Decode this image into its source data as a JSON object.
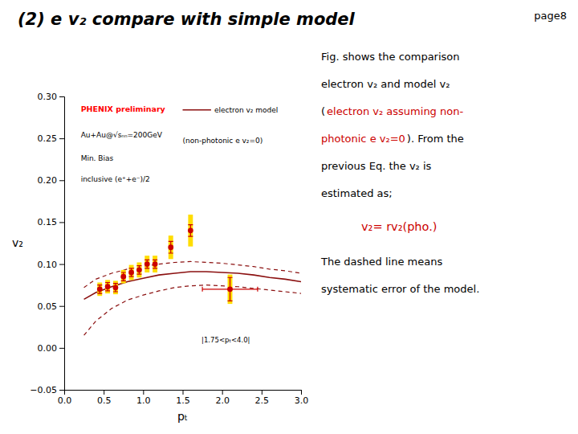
{
  "chart_data": {
    "type": "scatter",
    "title": "(2) e v₂ compare with simple model",
    "page_label": "page8",
    "x_label": "pₜ",
    "y_label": "v₂",
    "xlim": [
      0,
      3
    ],
    "ylim": [
      -0.05,
      0.3
    ],
    "xticks": [
      {
        "value": 0,
        "label": "0.0"
      },
      {
        "value": 0.5,
        "label": "0.5"
      },
      {
        "value": 1,
        "label": "1.0"
      },
      {
        "value": 1.5,
        "label": "1.5"
      },
      {
        "value": 2,
        "label": "2.0"
      },
      {
        "value": 2.5,
        "label": "2.5"
      },
      {
        "value": 3,
        "label": "3.0"
      }
    ],
    "yticks": [
      {
        "value": -0.05,
        "label": "−0.05"
      },
      {
        "value": 0,
        "label": "0.00"
      },
      {
        "value": 0.05,
        "label": "0.05"
      },
      {
        "value": 0.1,
        "label": "0.10"
      },
      {
        "value": 0.15,
        "label": "0.15"
      },
      {
        "value": 0.2,
        "label": "0.20"
      },
      {
        "value": 0.25,
        "label": "0.25"
      },
      {
        "value": 0.3,
        "label": "0.30"
      }
    ],
    "legend": "upper right",
    "series": [
      {
        "name": "electron v₂ model",
        "type": "line",
        "line_style": "solid",
        "color": "#8b1010",
        "x": [
          0.25,
          0.4,
          0.6,
          0.8,
          1.0,
          1.2,
          1.4,
          1.6,
          1.8,
          2.0,
          2.2,
          2.4,
          2.6,
          2.8,
          3.0
        ],
        "values": [
          0.058,
          0.066,
          0.073,
          0.079,
          0.083,
          0.087,
          0.089,
          0.091,
          0.091,
          0.09,
          0.089,
          0.087,
          0.084,
          0.082,
          0.079
        ]
      },
      {
        "type": "line",
        "line_style": "dashed",
        "color": "#8b1010",
        "x": [
          0.25,
          0.4,
          0.6,
          0.8,
          1.0,
          1.2,
          1.4,
          1.6,
          1.8,
          2.0,
          2.2,
          2.4,
          2.6,
          2.8,
          3.0
        ],
        "values": [
          0.072,
          0.082,
          0.089,
          0.094,
          0.097,
          0.1,
          0.102,
          0.103,
          0.102,
          0.101,
          0.099,
          0.097,
          0.094,
          0.092,
          0.089
        ]
      },
      {
        "type": "line",
        "line_style": "dashed",
        "color": "#8b1010",
        "x": [
          0.25,
          0.4,
          0.6,
          0.8,
          1.0,
          1.2,
          1.4,
          1.6,
          1.8,
          2.0,
          2.2,
          2.4,
          2.6,
          2.8,
          3.0
        ],
        "values": [
          0.015,
          0.032,
          0.047,
          0.057,
          0.063,
          0.068,
          0.072,
          0.074,
          0.075,
          0.074,
          0.073,
          0.071,
          0.069,
          0.067,
          0.065
        ]
      },
      {
        "type": "box",
        "color": "#ffdd00",
        "x": [
          0.45,
          0.55,
          0.65,
          0.75,
          0.85,
          0.95,
          1.05,
          1.15,
          1.35,
          1.6,
          2.1
        ],
        "values": [
          0.07,
          0.073,
          0.072,
          0.085,
          0.09,
          0.093,
          0.1,
          0.1,
          0.12,
          0.14,
          0.07
        ],
        "heights": [
          0.016,
          0.016,
          0.016,
          0.016,
          0.018,
          0.018,
          0.02,
          0.02,
          0.028,
          0.038,
          0.035
        ],
        "widths": [
          0.06,
          0.06,
          0.06,
          0.06,
          0.06,
          0.06,
          0.06,
          0.06,
          0.06,
          0.06,
          0.06
        ]
      },
      {
        "type": "scatter",
        "marker": "circle",
        "color": "#cc0000",
        "x": [
          0.45,
          0.55,
          0.65,
          0.75,
          0.85,
          0.95,
          1.05,
          1.15,
          1.35,
          1.6
        ],
        "values": [
          0.07,
          0.073,
          0.072,
          0.085,
          0.09,
          0.093,
          0.1,
          0.1,
          0.12,
          0.14
        ],
        "y_errors": [
          0.005,
          0.005,
          0.005,
          0.005,
          0.005,
          0.005,
          0.005,
          0.005,
          0.007,
          0.007
        ]
      },
      {
        "type": "scatter",
        "marker": "circle",
        "color": "#cc0000",
        "x": [
          2.1
        ],
        "values": [
          0.07
        ],
        "y_errors": [
          0.014
        ],
        "x_errors": [
          0.35
        ]
      }
    ],
    "annotations": [
      {
        "text": "PHENIX preliminary",
        "color": "#ff0000"
      },
      {
        "text": "Au+Au@√sₙₙ=200GeV"
      },
      {
        "text": "Min. Bias"
      },
      {
        "text": "inclusive (e⁺+e⁻)/2"
      },
      {
        "text": "(non-photonic e v₂=0)"
      },
      {
        "text": "|1.75<pₜ<4.0|"
      }
    ],
    "notes": [
      [
        {
          "text": "Fig. shows the comparison"
        }
      ],
      [
        {
          "text": "electron v₂ and model v₂"
        }
      ],
      [
        {
          "text": "("
        },
        {
          "text": "electron v₂ assuming non-",
          "color": "#cc0000"
        }
      ],
      [
        {
          "text": "photonic e v₂=0",
          "color": "#cc0000"
        },
        {
          "text": "). From the"
        }
      ],
      [
        {
          "text": "previous Eq. the v₂ is"
        }
      ],
      [
        {
          "text": "estimated as;"
        }
      ],
      [
        {
          "text": "v₂= rv₂(pho.)",
          "color": "#cc0000"
        }
      ],
      [
        {
          "text": "The dashed line means"
        }
      ],
      [
        {
          "text": "systematic error of the model."
        }
      ]
    ]
  }
}
